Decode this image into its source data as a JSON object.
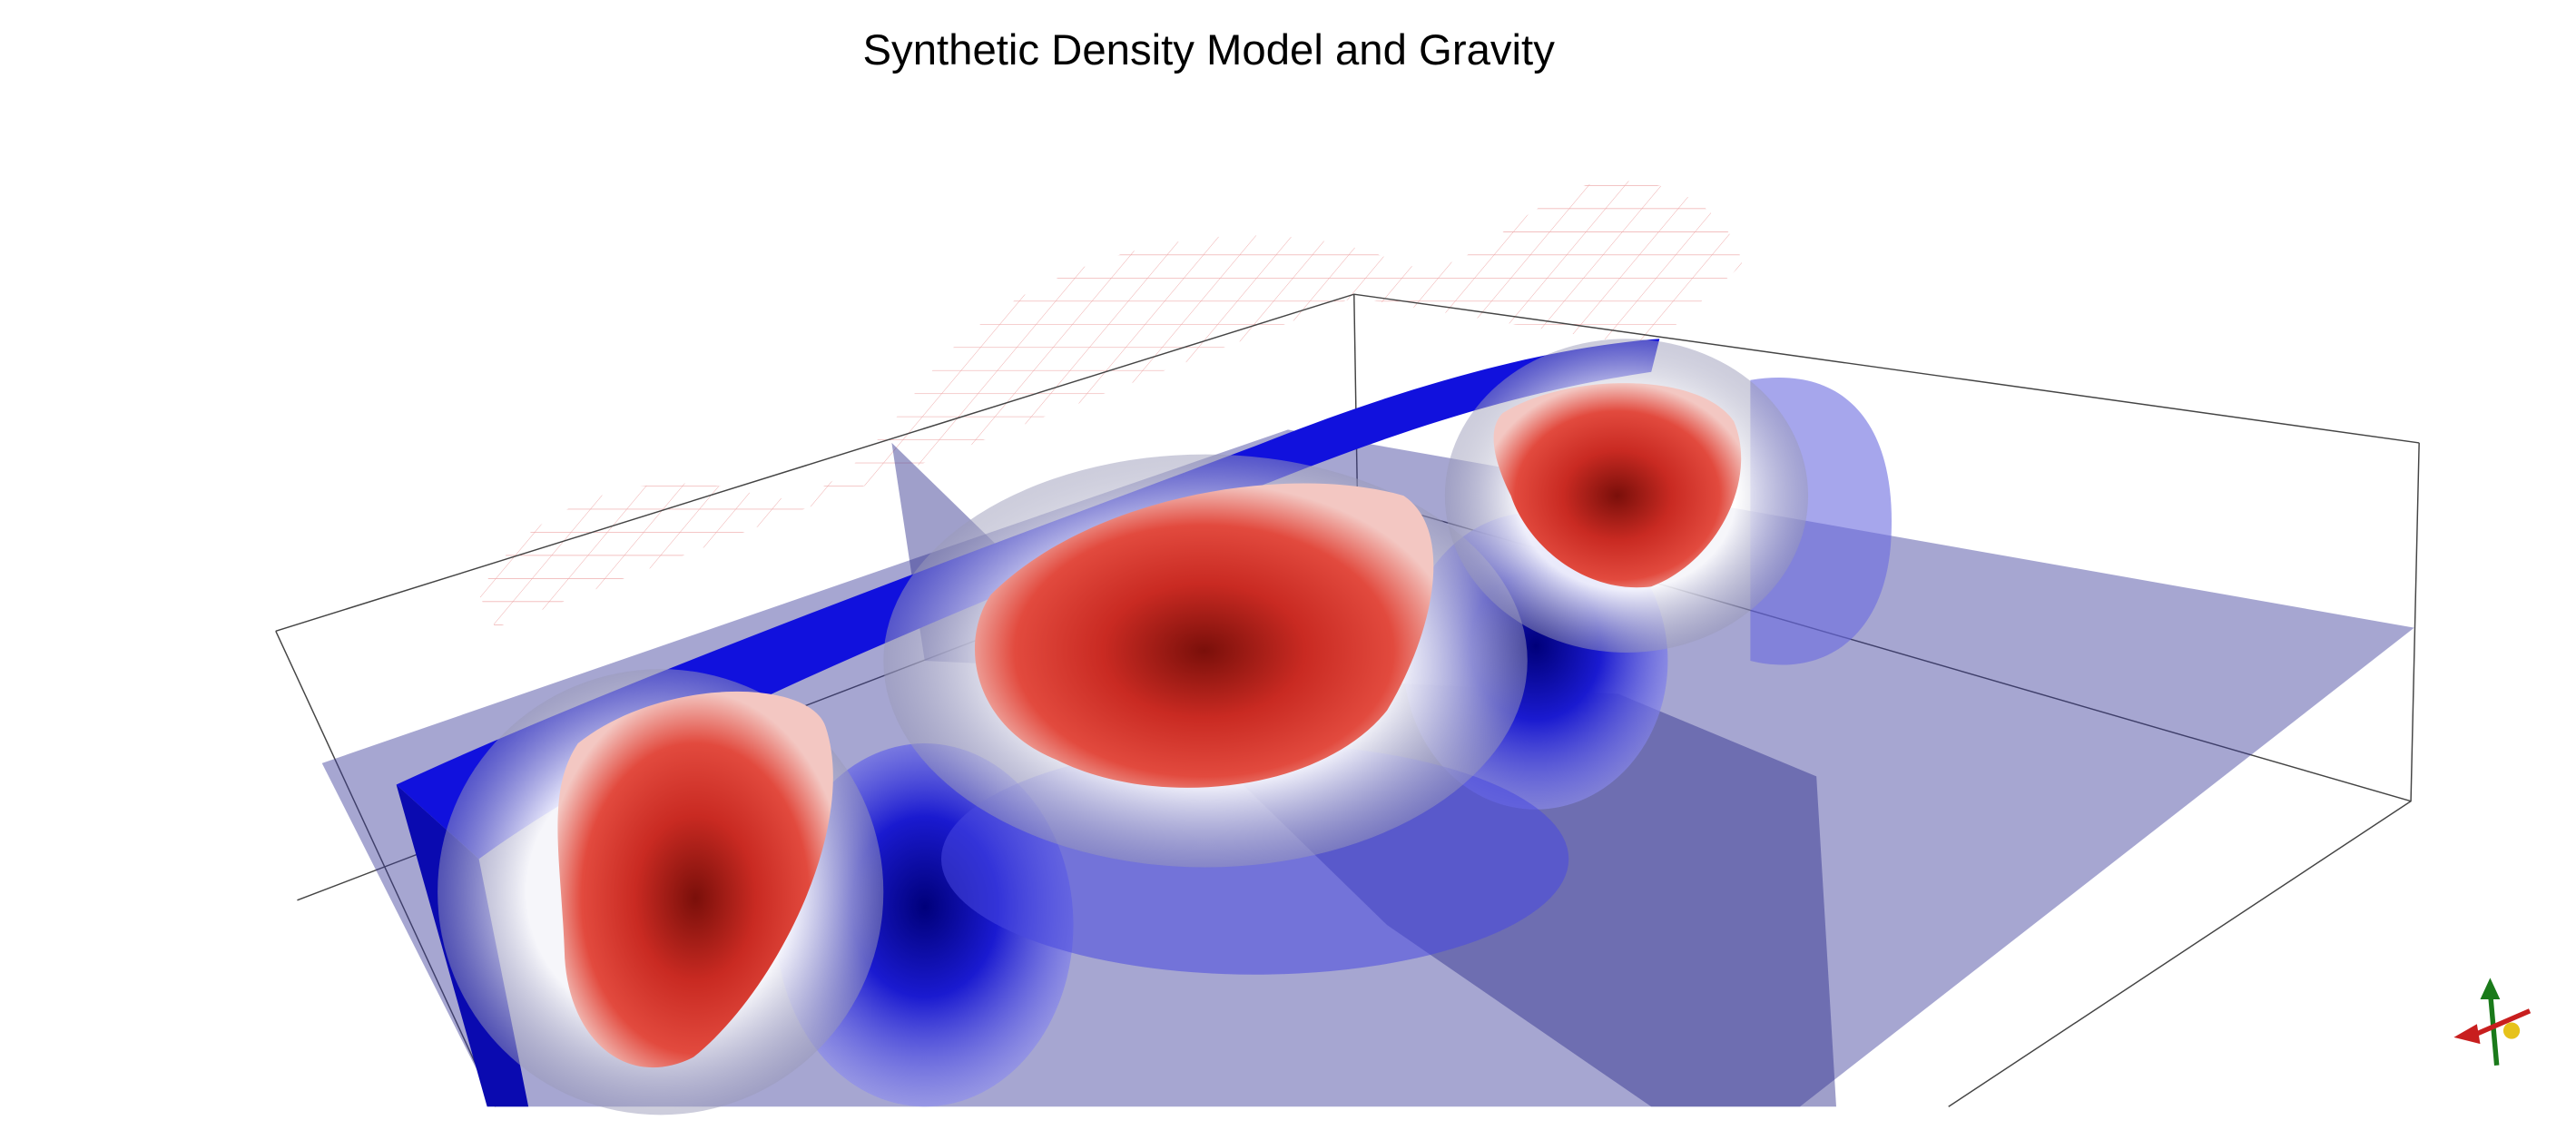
{
  "title": "Synthetic Density Model and Gravity"
}
